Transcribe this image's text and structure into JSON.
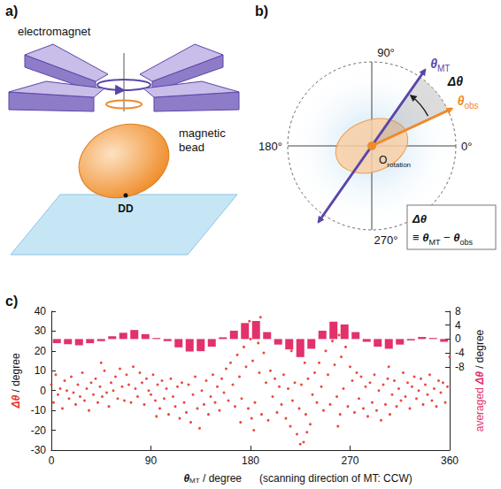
{
  "diagram": {
    "panel_a": {
      "letter": "a)",
      "electromagnet": "electromagnet",
      "bead": "magnetic bead",
      "dd": "DD"
    },
    "panel_b": {
      "letter": "b)",
      "angle_labels": [
        {
          "value": 0,
          "label": "0°"
        },
        {
          "value": 90,
          "label": "90°"
        },
        {
          "value": 180,
          "label": "180°"
        },
        {
          "value": 270,
          "label": "270°"
        }
      ],
      "theta_mt": [
        {
          "t": "θ",
          "color": "#5b45a8"
        },
        {
          "t": "MT",
          "sub": true,
          "color": "#5b45a8"
        }
      ],
      "theta_obs": [
        {
          "t": "θ",
          "color": "#ee8a2a"
        },
        {
          "t": "obs",
          "sub": true,
          "color": "#ee8a2a"
        }
      ],
      "delta": [
        {
          "t": "Δθ"
        }
      ],
      "origin": [
        {
          "t": "O"
        },
        {
          "t": "rotation",
          "sub": true
        }
      ],
      "definition": [
        [
          {
            "t": "Δθ"
          }
        ],
        [
          {
            "t": "≡ "
          },
          {
            "t": "θ"
          },
          {
            "t": "MT",
            "sub": true
          },
          {
            "t": " − "
          },
          {
            "t": "θ"
          },
          {
            "t": "obs",
            "sub": true
          }
        ]
      ]
    }
  },
  "chart_data": {
    "type": "scatter",
    "letter": "c)",
    "x_label": [
      {
        "t": "θ"
      },
      {
        "t": "MT",
        "sub": true
      },
      {
        "t": " / degree"
      }
    ],
    "x_note": "(scanning direction of MT: CCW)",
    "y_label": [
      {
        "t": "Δθ",
        "color": "#e8352b"
      },
      {
        "t": " / degree"
      }
    ],
    "y2_label": [
      {
        "t": "averaged ",
        "color": "#e2316b"
      },
      {
        "t": "Δθ",
        "color": "#e2316b"
      },
      {
        "t": " / degree"
      }
    ],
    "xlim": [
      0,
      360
    ],
    "xticks": [
      0,
      90,
      180,
      270,
      360
    ],
    "ylim": [
      -30,
      40
    ],
    "yticks": [
      -30,
      -20,
      -10,
      0,
      10,
      20,
      30,
      40
    ],
    "y2lim": [
      -32,
      8
    ],
    "y2ticks": [
      -8,
      -4,
      0,
      4,
      8
    ],
    "grid": false,
    "series": [
      {
        "type": "scatter",
        "color": "#e8352b",
        "marker": "circle",
        "x": [
          0,
          2,
          4,
          6,
          8,
          10,
          12,
          14,
          16,
          18,
          20,
          22,
          24,
          26,
          28,
          30,
          32,
          34,
          36,
          38,
          40,
          42,
          44,
          46,
          48,
          50,
          52,
          54,
          56,
          58,
          60,
          62,
          64,
          66,
          68,
          70,
          72,
          74,
          76,
          78,
          80,
          82,
          84,
          86,
          88,
          90,
          92,
          94,
          96,
          98,
          100,
          102,
          104,
          106,
          108,
          110,
          112,
          114,
          116,
          118,
          120,
          122,
          124,
          126,
          128,
          130,
          132,
          134,
          136,
          138,
          140,
          142,
          144,
          146,
          148,
          150,
          152,
          154,
          156,
          158,
          160,
          162,
          164,
          166,
          168,
          170,
          172,
          174,
          176,
          178,
          180,
          182,
          184,
          186,
          188,
          190,
          192,
          194,
          196,
          198,
          200,
          202,
          204,
          206,
          208,
          210,
          212,
          214,
          216,
          218,
          220,
          222,
          224,
          226,
          228,
          230,
          232,
          234,
          236,
          238,
          240,
          242,
          244,
          246,
          248,
          250,
          252,
          254,
          256,
          258,
          260,
          262,
          264,
          266,
          268,
          270,
          272,
          274,
          276,
          278,
          280,
          282,
          284,
          286,
          288,
          290,
          292,
          294,
          296,
          298,
          300,
          302,
          304,
          306,
          308,
          310,
          312,
          314,
          316,
          318,
          320,
          322,
          324,
          326,
          328,
          330,
          332,
          334,
          336,
          338,
          340,
          342,
          344,
          346,
          348,
          350,
          352,
          354,
          356,
          358,
          360,
          179,
          183,
          185,
          187,
          177,
          181,
          257,
          259,
          263,
          253,
          225,
          229,
          231,
          171,
          189,
          261,
          217,
          45,
          95,
          305
        ],
        "values": [
          3,
          -6,
          8,
          -2,
          1,
          -9,
          5,
          0,
          -4,
          7,
          -1,
          -7,
          3,
          -3,
          9,
          -5,
          1,
          -10,
          4,
          -2,
          6,
          -6,
          2,
          -3,
          10,
          -1,
          -8,
          4,
          0,
          7,
          -4,
          11,
          2,
          -5,
          8,
          3,
          -6,
          12,
          1,
          -3,
          9,
          4,
          -7,
          6,
          0,
          -2,
          8,
          -5,
          3,
          -9,
          5,
          -4,
          1,
          -12,
          6,
          -3,
          -8,
          2,
          -14,
          4,
          -6,
          -11,
          3,
          -16,
          -2,
          7,
          -9,
          -19,
          0,
          -7,
          5,
          -12,
          -3,
          8,
          -6,
          2,
          -10,
          6,
          -1,
          11,
          -5,
          14,
          3,
          -8,
          18,
          7,
          -4,
          22,
          12,
          -9,
          26,
          15,
          -6,
          31,
          9,
          -12,
          19,
          4,
          -15,
          10,
          -3,
          6,
          -11,
          2,
          -7,
          8,
          -14,
          1,
          -18,
          -5,
          4,
          -22,
          -9,
          3,
          -26,
          -12,
          6,
          -17,
          -2,
          9,
          -6,
          14,
          2,
          -10,
          20,
          8,
          -7,
          25,
          13,
          -3,
          28,
          17,
          1,
          22,
          -8,
          12,
          5,
          -11,
          9,
          -4,
          7,
          -9,
          2,
          -13,
          4,
          -6,
          8,
          -10,
          0,
          -15,
          3,
          -7,
          6,
          -12,
          -2,
          5,
          -8,
          1,
          -5,
          9,
          -3,
          4,
          -9,
          2,
          7,
          -4,
          0,
          6,
          -7,
          3,
          -2,
          8,
          -5,
          1,
          -8,
          5,
          -1,
          4,
          -6,
          2,
          17,
          35,
          -20,
          33,
          24,
          28,
          -14,
          34,
          -18,
          31,
          27,
          -27,
          14,
          -21,
          -16,
          37,
          -12,
          20,
          14,
          -13,
          12
        ]
      },
      {
        "type": "bar",
        "axis": "y2",
        "color": "#e2316b",
        "x": [
          5,
          15,
          25,
          35,
          45,
          55,
          65,
          75,
          85,
          95,
          105,
          115,
          125,
          135,
          145,
          155,
          165,
          175,
          185,
          195,
          205,
          215,
          225,
          235,
          245,
          255,
          265,
          275,
          285,
          295,
          305,
          315,
          325,
          335,
          345,
          355
        ],
        "values": [
          -1.2,
          -1.5,
          -1.8,
          -1.2,
          -0.6,
          0.8,
          1.8,
          2.6,
          1.4,
          0.3,
          -0.6,
          -2.4,
          -3.6,
          -3.5,
          -2.2,
          0.5,
          2.4,
          4.6,
          5.2,
          2.0,
          -1.6,
          -3.0,
          -5.2,
          -2.8,
          2.4,
          5.0,
          4.2,
          2.0,
          -0.8,
          -2.2,
          -2.8,
          -1.6,
          -0.4,
          0.6,
          0.3,
          -0.8
        ]
      }
    ]
  }
}
